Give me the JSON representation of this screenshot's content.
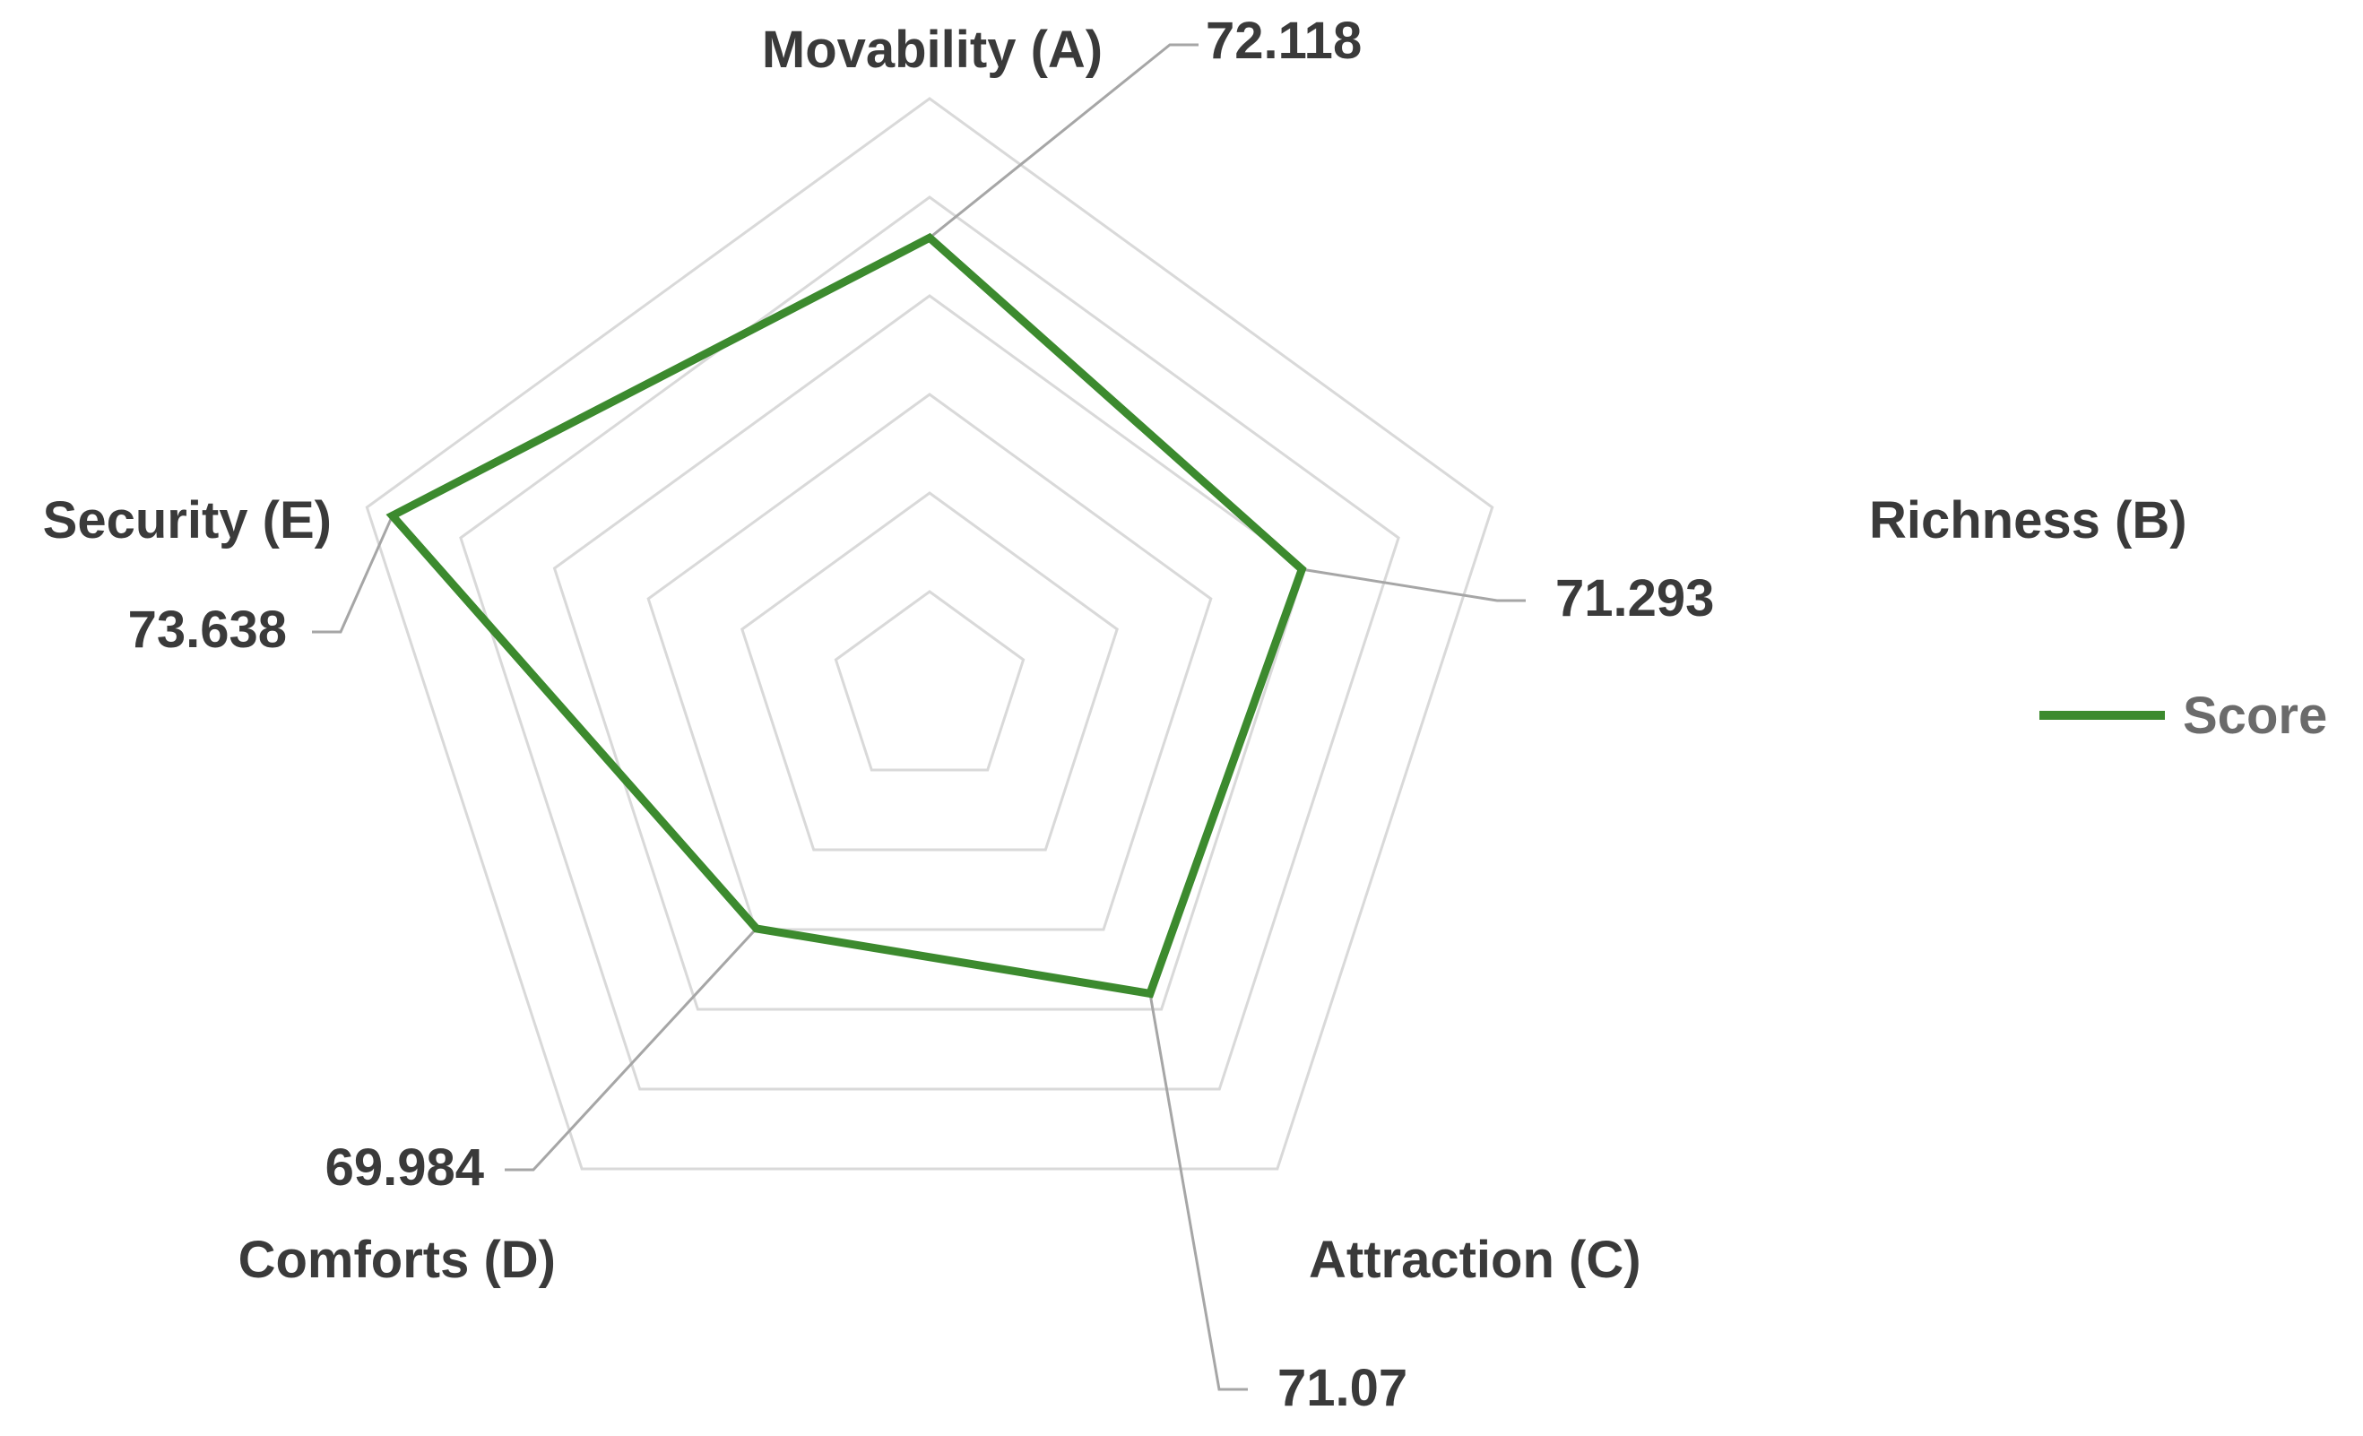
{
  "chart_data": {
    "type": "radar",
    "categories": [
      "Movability (A)",
      "Richness (B)",
      "Attraction (C)",
      "Comforts (D)",
      "Security (E)"
    ],
    "series": [
      {
        "name": "Score",
        "values": [
          72.118,
          71.293,
          71.07,
          69.984,
          73.638
        ],
        "color": "#3c8a2e"
      }
    ],
    "value_labels": [
      "72.118",
      "71.293",
      "71.07",
      "69.984",
      "73.638"
    ],
    "radial_range": [
      66,
      74
    ],
    "grid_rings": 6,
    "grid": true,
    "grid_color": "#d9d9d9",
    "leader_color": "#a6a6a6",
    "legend_position": "right"
  }
}
